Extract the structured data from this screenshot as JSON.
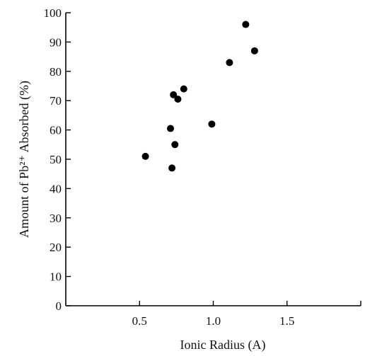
{
  "chart_data": {
    "type": "scatter",
    "title": "",
    "xlabel": "Ionic Radius (A)",
    "ylabel": "Amount of Pb²⁺ Absorbed (%)",
    "xlim": [
      0,
      2.0
    ],
    "ylim": [
      0,
      100
    ],
    "x_ticks": [
      {
        "value": 0.5,
        "label": "0.5"
      },
      {
        "value": 1.0,
        "label": "1.0"
      },
      {
        "value": 1.5,
        "label": "1.5"
      },
      {
        "value": 2.0,
        "label": ""
      }
    ],
    "y_ticks": [
      {
        "value": 0,
        "label": "0"
      },
      {
        "value": 10,
        "label": "10"
      },
      {
        "value": 20,
        "label": "20"
      },
      {
        "value": 30,
        "label": "30"
      },
      {
        "value": 40,
        "label": "40"
      },
      {
        "value": 50,
        "label": "50"
      },
      {
        "value": 60,
        "label": "60"
      },
      {
        "value": 70,
        "label": "70"
      },
      {
        "value": 80,
        "label": "80"
      },
      {
        "value": 90,
        "label": "90"
      },
      {
        "value": 100,
        "label": "100"
      }
    ],
    "grid": false,
    "series": [
      {
        "points": [
          {
            "x": 0.54,
            "y": 51
          },
          {
            "x": 0.71,
            "y": 60.5
          },
          {
            "x": 0.72,
            "y": 47
          },
          {
            "x": 0.73,
            "y": 72
          },
          {
            "x": 0.74,
            "y": 55
          },
          {
            "x": 0.76,
            "y": 70.5
          },
          {
            "x": 0.8,
            "y": 74
          },
          {
            "x": 0.99,
            "y": 62
          },
          {
            "x": 1.11,
            "y": 83
          },
          {
            "x": 1.22,
            "y": 96
          },
          {
            "x": 1.28,
            "y": 87
          }
        ]
      }
    ],
    "colors": {
      "marker": "#000000",
      "axis": "#000000",
      "text": "#111111"
    }
  }
}
